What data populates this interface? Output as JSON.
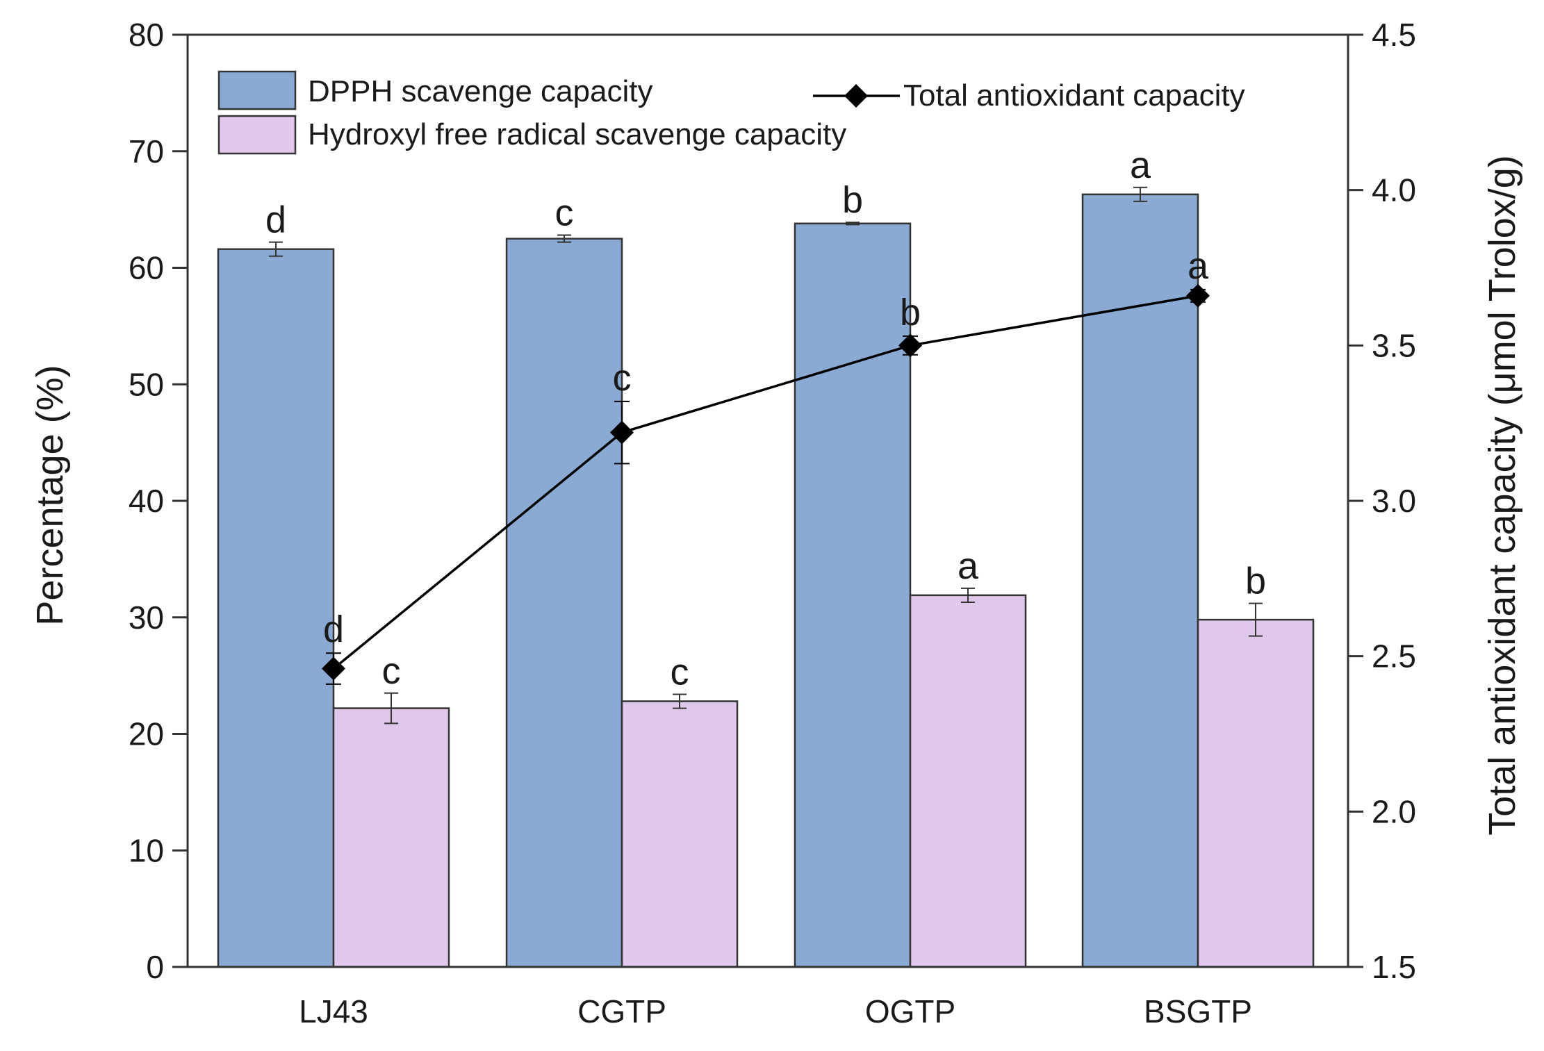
{
  "chart_data": {
    "type": "bar",
    "categories": [
      "LJ43",
      "CGTP",
      "OGTP",
      "BSGTP"
    ],
    "series": [
      {
        "name": "DPPH scavenge capacity",
        "axis": "left",
        "values": [
          61.6,
          62.5,
          63.8,
          66.3
        ],
        "errors": [
          0.6,
          0.3,
          0.1,
          0.6
        ],
        "letters": [
          "d",
          "c",
          "b",
          "a"
        ],
        "color": "#8aaad4"
      },
      {
        "name": "Hydroxyl free radical scavenge capacity",
        "axis": "left",
        "values": [
          22.2,
          22.8,
          31.9,
          29.8
        ],
        "errors": [
          1.3,
          0.6,
          0.6,
          1.4
        ],
        "letters": [
          "c",
          "c",
          "a",
          "b"
        ],
        "color": "#e0c8ec"
      },
      {
        "name": "Total antioxidant capacity",
        "axis": "right",
        "type": "line",
        "values": [
          2.46,
          3.22,
          3.5,
          3.66
        ],
        "errors": [
          0.05,
          0.1,
          0.03,
          0.02
        ],
        "letters": [
          "d",
          "c",
          "b",
          "a"
        ],
        "color": "#000000"
      }
    ],
    "ylabel": "Percentage (%)",
    "ylabel_right": "Total antioxidant capacity (μmol Trolox/g)",
    "ylim": [
      0,
      80
    ],
    "ylim_right": [
      1.5,
      4.5
    ],
    "yticks": [
      0,
      10,
      20,
      30,
      40,
      50,
      60,
      70,
      80
    ],
    "yticks_right": [
      "1.5",
      "2.0",
      "2.5",
      "3.0",
      "3.5",
      "4.0",
      "4.5"
    ],
    "legend_position": "top"
  }
}
